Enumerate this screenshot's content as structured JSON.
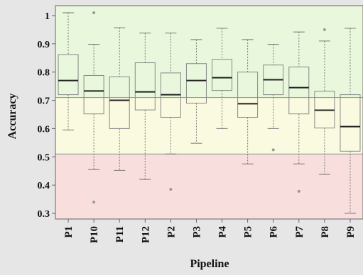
{
  "chart_data": {
    "type": "box",
    "xlabel": "Pipeline",
    "ylabel": "Accuracy",
    "ylim": [
      0.28,
      1.035
    ],
    "yticks": [
      "0.3",
      "0.4",
      "0.5",
      "0.6",
      "0.7",
      "0.8",
      "0.9",
      "1"
    ],
    "grid": false,
    "bands": [
      {
        "from": 0.28,
        "to": 0.51,
        "color": "#f9dede"
      },
      {
        "from": 0.51,
        "to": 0.71,
        "color": "#fafae0"
      },
      {
        "from": 0.71,
        "to": 1.035,
        "color": "#e9f8dc"
      }
    ],
    "reference_lines": [
      0.51,
      0.71
    ],
    "categories": [
      "P1",
      "P10",
      "P11",
      "P12",
      "P2",
      "P3",
      "P4",
      "P5",
      "P6",
      "P7",
      "P8",
      "P9"
    ],
    "boxes": [
      {
        "name": "P1",
        "min": 0.595,
        "q1": 0.72,
        "median": 0.77,
        "q3": 0.862,
        "max": 1.01,
        "outliers": []
      },
      {
        "name": "P10",
        "min": 0.455,
        "q1": 0.652,
        "median": 0.733,
        "q3": 0.788,
        "max": 0.898,
        "outliers": [
          1.01,
          0.34
        ]
      },
      {
        "name": "P11",
        "min": 0.452,
        "q1": 0.6,
        "median": 0.7,
        "q3": 0.783,
        "max": 0.957,
        "outliers": []
      },
      {
        "name": "P12",
        "min": 0.42,
        "q1": 0.666,
        "median": 0.73,
        "q3": 0.833,
        "max": 0.938,
        "outliers": []
      },
      {
        "name": "P2",
        "min": 0.51,
        "q1": 0.64,
        "median": 0.72,
        "q3": 0.797,
        "max": 0.938,
        "outliers": [
          0.385
        ]
      },
      {
        "name": "P3",
        "min": 0.548,
        "q1": 0.69,
        "median": 0.77,
        "q3": 0.83,
        "max": 0.915,
        "outliers": []
      },
      {
        "name": "P4",
        "min": 0.6,
        "q1": 0.735,
        "median": 0.78,
        "q3": 0.845,
        "max": 0.955,
        "outliers": []
      },
      {
        "name": "P5",
        "min": 0.475,
        "q1": 0.64,
        "median": 0.688,
        "q3": 0.8,
        "max": 0.915,
        "outliers": []
      },
      {
        "name": "P6",
        "min": 0.6,
        "q1": 0.72,
        "median": 0.773,
        "q3": 0.825,
        "max": 0.898,
        "outliers": [
          0.525
        ]
      },
      {
        "name": "P7",
        "min": 0.475,
        "q1": 0.652,
        "median": 0.745,
        "q3": 0.818,
        "max": 0.942,
        "outliers": [
          0.378
        ]
      },
      {
        "name": "P8",
        "min": 0.438,
        "q1": 0.602,
        "median": 0.665,
        "q3": 0.732,
        "max": 0.91,
        "outliers": [
          0.95
        ]
      },
      {
        "name": "P9",
        "min": 0.3,
        "q1": 0.52,
        "median": 0.607,
        "q3": 0.72,
        "max": 0.955,
        "outliers": []
      }
    ],
    "colors": {
      "axis": "#666666",
      "box_edge": "#888888",
      "median": "#222222",
      "whisker": "#777777",
      "outlier": "#999999",
      "reference_line": "#9a9a9a",
      "page_background": "#e6e6e6"
    }
  }
}
